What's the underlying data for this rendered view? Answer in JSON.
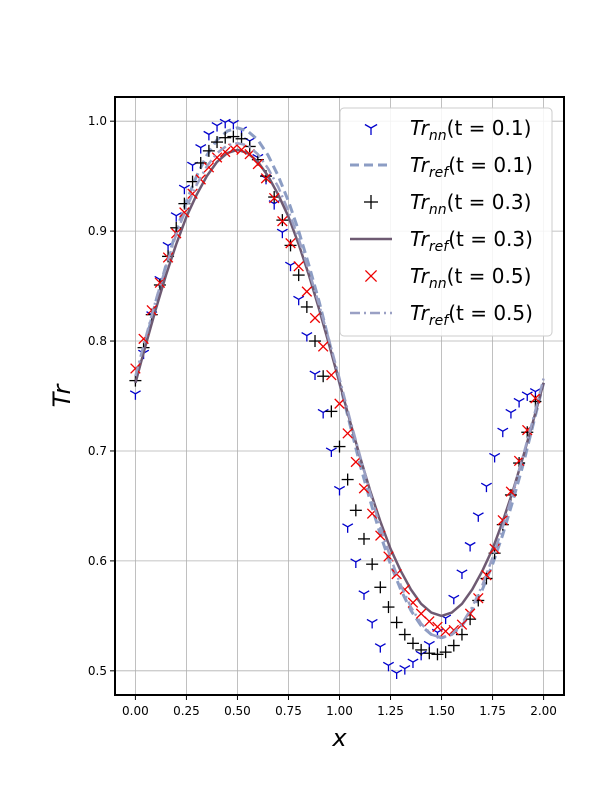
{
  "chart_data": {
    "type": "line",
    "title": "",
    "xlabel": "x",
    "ylabel": "Tr",
    "xlim": [
      -0.1,
      2.1
    ],
    "ylim": [
      0.478,
      1.022
    ],
    "x_ticks": [
      0.0,
      0.25,
      0.5,
      0.75,
      1.0,
      1.25,
      1.5,
      1.75,
      2.0
    ],
    "x_tick_labels": [
      "0.00",
      "0.25",
      "0.50",
      "0.75",
      "1.00",
      "1.25",
      "1.50",
      "1.75",
      "2.00"
    ],
    "y_ticks": [
      0.5,
      0.6,
      0.7,
      0.8,
      0.9,
      1.0
    ],
    "y_tick_labels": [
      "0.5",
      "0.6",
      "0.7",
      "0.8",
      "0.9",
      "1.0"
    ],
    "grid": true,
    "legend_position": "top-right",
    "series": [
      {
        "name": "Tr_nn(t = 0.1)",
        "legend_base": "Tr",
        "legend_sub": "nn",
        "legend_args": "(t = 0.1)",
        "kind": "markers",
        "marker": "tri_down",
        "color": "#0000cc",
        "x": [
          0.0,
          0.04,
          0.08,
          0.12,
          0.16,
          0.2,
          0.24,
          0.28,
          0.32,
          0.36,
          0.4,
          0.44,
          0.48,
          0.52,
          0.56,
          0.6,
          0.64,
          0.68,
          0.72,
          0.76,
          0.8,
          0.84,
          0.88,
          0.92,
          0.96,
          1.0,
          1.04,
          1.08,
          1.12,
          1.16,
          1.2,
          1.24,
          1.28,
          1.32,
          1.36,
          1.4,
          1.44,
          1.48,
          1.52,
          1.56,
          1.6,
          1.64,
          1.68,
          1.72,
          1.76,
          1.8,
          1.84,
          1.88,
          1.92,
          1.96
        ],
        "y": [
          0.752,
          0.789,
          0.824,
          0.856,
          0.887,
          0.914,
          0.939,
          0.96,
          0.976,
          0.988,
          0.996,
          0.999,
          0.998,
          0.992,
          0.982,
          0.967,
          0.948,
          0.925,
          0.899,
          0.869,
          0.838,
          0.805,
          0.77,
          0.735,
          0.7,
          0.665,
          0.631,
          0.599,
          0.57,
          0.544,
          0.522,
          0.505,
          0.498,
          0.502,
          0.508,
          0.515,
          0.524,
          0.535,
          0.548,
          0.566,
          0.589,
          0.614,
          0.641,
          0.668,
          0.695,
          0.718,
          0.735,
          0.745,
          0.751,
          0.754
        ]
      },
      {
        "name": "Tr_ref(t = 0.1)",
        "legend_base": "Tr",
        "legend_sub": "ref",
        "legend_args": "(t = 0.1)",
        "kind": "line",
        "dash": "9,5",
        "color": "#8c9dc4",
        "width": 3,
        "x": [
          0.0,
          0.05,
          0.1,
          0.15,
          0.2,
          0.25,
          0.3,
          0.35,
          0.4,
          0.45,
          0.5,
          0.55,
          0.6,
          0.65,
          0.7,
          0.75,
          0.8,
          0.85,
          0.9,
          0.95,
          1.0,
          1.05,
          1.1,
          1.15,
          1.2,
          1.25,
          1.3,
          1.35,
          1.4,
          1.45,
          1.5,
          1.55,
          1.6,
          1.65,
          1.7,
          1.75,
          1.8,
          1.85,
          1.9,
          1.95,
          2.0
        ],
        "y": [
          0.762,
          0.799,
          0.836,
          0.869,
          0.9,
          0.927,
          0.95,
          0.969,
          0.983,
          0.991,
          0.994,
          0.991,
          0.983,
          0.969,
          0.95,
          0.927,
          0.9,
          0.869,
          0.836,
          0.799,
          0.762,
          0.725,
          0.688,
          0.655,
          0.624,
          0.597,
          0.574,
          0.555,
          0.541,
          0.533,
          0.53,
          0.533,
          0.541,
          0.555,
          0.574,
          0.597,
          0.624,
          0.655,
          0.688,
          0.725,
          0.762
        ]
      },
      {
        "name": "Tr_nn(t = 0.3)",
        "legend_base": "Tr",
        "legend_sub": "nn",
        "legend_args": "(t = 0.3)",
        "kind": "markers",
        "marker": "plus",
        "color": "#000000",
        "x": [
          0.0,
          0.04,
          0.08,
          0.12,
          0.16,
          0.2,
          0.24,
          0.28,
          0.32,
          0.36,
          0.4,
          0.44,
          0.48,
          0.52,
          0.56,
          0.6,
          0.64,
          0.68,
          0.72,
          0.76,
          0.8,
          0.84,
          0.88,
          0.92,
          0.96,
          1.0,
          1.04,
          1.08,
          1.12,
          1.16,
          1.2,
          1.24,
          1.28,
          1.32,
          1.36,
          1.4,
          1.44,
          1.48,
          1.52,
          1.56,
          1.6,
          1.64,
          1.68,
          1.72,
          1.76,
          1.8,
          1.84,
          1.88,
          1.92,
          1.96
        ],
        "y": [
          0.764,
          0.794,
          0.824,
          0.851,
          0.877,
          0.903,
          0.925,
          0.945,
          0.962,
          0.973,
          0.981,
          0.985,
          0.986,
          0.984,
          0.977,
          0.965,
          0.95,
          0.931,
          0.91,
          0.887,
          0.86,
          0.831,
          0.8,
          0.768,
          0.736,
          0.704,
          0.674,
          0.646,
          0.62,
          0.597,
          0.576,
          0.558,
          0.544,
          0.533,
          0.525,
          0.519,
          0.516,
          0.515,
          0.517,
          0.523,
          0.533,
          0.547,
          0.564,
          0.584,
          0.607,
          0.633,
          0.66,
          0.689,
          0.717,
          0.745
        ]
      },
      {
        "name": "Tr_ref(t = 0.3)",
        "legend_base": "Tr",
        "legend_sub": "ref",
        "legend_args": "(t = 0.3)",
        "kind": "line",
        "dash": "",
        "color": "#6e5a72",
        "width": 2.5,
        "x": [
          0.0,
          0.05,
          0.1,
          0.15,
          0.2,
          0.25,
          0.3,
          0.35,
          0.4,
          0.45,
          0.5,
          0.55,
          0.6,
          0.65,
          0.7,
          0.75,
          0.8,
          0.85,
          0.9,
          0.95,
          1.0,
          1.05,
          1.1,
          1.15,
          1.2,
          1.25,
          1.3,
          1.35,
          1.4,
          1.45,
          1.5,
          1.55,
          1.6,
          1.65,
          1.7,
          1.75,
          1.8,
          1.85,
          1.9,
          1.95,
          2.0
        ],
        "y": [
          0.762,
          0.796,
          0.829,
          0.86,
          0.888,
          0.913,
          0.933,
          0.95,
          0.963,
          0.971,
          0.974,
          0.971,
          0.963,
          0.95,
          0.933,
          0.913,
          0.888,
          0.86,
          0.829,
          0.796,
          0.762,
          0.728,
          0.695,
          0.664,
          0.636,
          0.611,
          0.591,
          0.574,
          0.561,
          0.553,
          0.55,
          0.553,
          0.561,
          0.574,
          0.591,
          0.611,
          0.636,
          0.664,
          0.695,
          0.728,
          0.762
        ]
      },
      {
        "name": "Tr_nn(t = 0.5)",
        "legend_base": "Tr",
        "legend_sub": "nn",
        "legend_args": "(t = 0.5)",
        "kind": "markers",
        "marker": "x",
        "color": "#ee0000",
        "x": [
          0.0,
          0.04,
          0.08,
          0.12,
          0.16,
          0.2,
          0.24,
          0.28,
          0.32,
          0.36,
          0.4,
          0.44,
          0.48,
          0.52,
          0.56,
          0.6,
          0.64,
          0.68,
          0.72,
          0.76,
          0.8,
          0.84,
          0.88,
          0.92,
          0.96,
          1.0,
          1.04,
          1.08,
          1.12,
          1.16,
          1.2,
          1.24,
          1.28,
          1.32,
          1.36,
          1.4,
          1.44,
          1.48,
          1.52,
          1.56,
          1.6,
          1.64,
          1.68,
          1.72,
          1.76,
          1.8,
          1.84,
          1.88,
          1.92,
          1.96
        ],
        "y": [
          0.775,
          0.802,
          0.828,
          0.853,
          0.876,
          0.898,
          0.917,
          0.934,
          0.947,
          0.958,
          0.967,
          0.972,
          0.975,
          0.974,
          0.97,
          0.961,
          0.948,
          0.93,
          0.909,
          0.889,
          0.868,
          0.845,
          0.821,
          0.795,
          0.769,
          0.743,
          0.716,
          0.69,
          0.666,
          0.643,
          0.623,
          0.604,
          0.588,
          0.574,
          0.562,
          0.552,
          0.545,
          0.54,
          0.536,
          0.537,
          0.542,
          0.552,
          0.566,
          0.587,
          0.611,
          0.637,
          0.663,
          0.691,
          0.719,
          0.748
        ]
      },
      {
        "name": "Tr_ref(t = 0.5)",
        "legend_base": "Tr",
        "legend_sub": "ref",
        "legend_args": "(t = 0.5)",
        "kind": "line",
        "dash": "10,4,2,4",
        "color": "#9aa0c4",
        "width": 2.5,
        "x": [
          0.0,
          0.05,
          0.1,
          0.15,
          0.2,
          0.25,
          0.3,
          0.35,
          0.4,
          0.45,
          0.5,
          0.55,
          0.6,
          0.65,
          0.7,
          0.75,
          0.8,
          0.85,
          0.9,
          0.95,
          1.0,
          1.05,
          1.1,
          1.15,
          1.2,
          1.25,
          1.3,
          1.35,
          1.4,
          1.45,
          1.5,
          1.55,
          1.6,
          1.65,
          1.7,
          1.75,
          1.8,
          1.85,
          1.9,
          1.95,
          2.0
        ],
        "y": [
          0.768,
          0.803,
          0.837,
          0.868,
          0.897,
          0.921,
          0.942,
          0.959,
          0.971,
          0.978,
          0.98,
          0.978,
          0.97,
          0.957,
          0.94,
          0.918,
          0.893,
          0.864,
          0.833,
          0.8,
          0.766,
          0.73,
          0.696,
          0.662,
          0.631,
          0.603,
          0.578,
          0.558,
          0.543,
          0.533,
          0.53,
          0.533,
          0.543,
          0.558,
          0.578,
          0.603,
          0.631,
          0.662,
          0.696,
          0.73,
          0.766
        ]
      }
    ]
  }
}
